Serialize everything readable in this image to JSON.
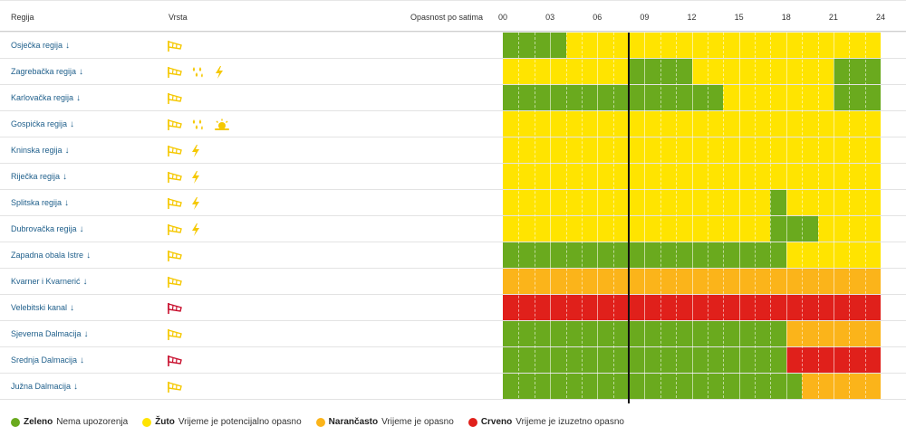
{
  "header": {
    "region_col": "Regija",
    "type_col": "Vrsta",
    "hazard_col": "Opasnost po satima",
    "hours": [
      "00",
      "03",
      "06",
      "09",
      "12",
      "15",
      "18",
      "21",
      "24"
    ]
  },
  "colors": {
    "green": "#6aaa1e",
    "yellow": "#ffe400",
    "orange": "#fbb41a",
    "red": "#e0201b",
    "wind_yellow": "#f5c800",
    "wind_red": "#c8102e",
    "region_link": "#1f5f8b"
  },
  "current_hour": 8,
  "rows": [
    {
      "region": "Osječka regija",
      "icons": [
        "wind-yellow-icon"
      ],
      "segments": [
        {
          "from": 0,
          "to": 4,
          "level": "green"
        },
        {
          "from": 4,
          "to": 24,
          "level": "yellow"
        }
      ]
    },
    {
      "region": "Zagrebačka regija",
      "icons": [
        "wind-yellow-icon",
        "rain-yellow-icon",
        "thunderstorm-yellow-icon"
      ],
      "segments": [
        {
          "from": 0,
          "to": 8,
          "level": "yellow"
        },
        {
          "from": 8,
          "to": 12,
          "level": "green"
        },
        {
          "from": 12,
          "to": 21,
          "level": "yellow"
        },
        {
          "from": 21,
          "to": 24,
          "level": "green"
        }
      ]
    },
    {
      "region": "Karlovačka regija",
      "icons": [
        "wind-yellow-icon"
      ],
      "segments": [
        {
          "from": 0,
          "to": 14,
          "level": "green"
        },
        {
          "from": 14,
          "to": 21,
          "level": "yellow"
        },
        {
          "from": 21,
          "to": 24,
          "level": "green"
        }
      ]
    },
    {
      "region": "Gospićka regija",
      "icons": [
        "wind-yellow-icon",
        "rain-yellow-icon",
        "heat-yellow-icon"
      ],
      "segments": [
        {
          "from": 0,
          "to": 24,
          "level": "yellow"
        }
      ]
    },
    {
      "region": "Kninska regija",
      "icons": [
        "wind-yellow-icon",
        "thunderstorm-yellow-icon"
      ],
      "segments": [
        {
          "from": 0,
          "to": 24,
          "level": "yellow"
        }
      ]
    },
    {
      "region": "Riječka regija",
      "icons": [
        "wind-yellow-icon",
        "thunderstorm-yellow-icon"
      ],
      "segments": [
        {
          "from": 0,
          "to": 24,
          "level": "yellow"
        }
      ]
    },
    {
      "region": "Splitska regija",
      "icons": [
        "wind-yellow-icon",
        "thunderstorm-yellow-icon"
      ],
      "segments": [
        {
          "from": 0,
          "to": 17,
          "level": "yellow"
        },
        {
          "from": 17,
          "to": 18,
          "level": "green"
        },
        {
          "from": 18,
          "to": 24,
          "level": "yellow"
        }
      ]
    },
    {
      "region": "Dubrovačka regija",
      "icons": [
        "wind-yellow-icon",
        "thunderstorm-yellow-icon"
      ],
      "segments": [
        {
          "from": 0,
          "to": 17,
          "level": "yellow"
        },
        {
          "from": 17,
          "to": 20,
          "level": "green"
        },
        {
          "from": 20,
          "to": 24,
          "level": "yellow"
        }
      ]
    },
    {
      "region": "Zapadna obala Istre",
      "icons": [
        "wind-yellow-icon"
      ],
      "segments": [
        {
          "from": 0,
          "to": 18,
          "level": "green"
        },
        {
          "from": 18,
          "to": 24,
          "level": "yellow"
        }
      ]
    },
    {
      "region": "Kvarner i Kvarnerić",
      "icons": [
        "wind-yellow-icon"
      ],
      "segments": [
        {
          "from": 0,
          "to": 24,
          "level": "orange"
        }
      ]
    },
    {
      "region": "Velebitski kanal",
      "icons": [
        "wind-red-icon"
      ],
      "segments": [
        {
          "from": 0,
          "to": 24,
          "level": "red"
        }
      ]
    },
    {
      "region": "Sjeverna Dalmacija",
      "icons": [
        "wind-yellow-icon"
      ],
      "segments": [
        {
          "from": 0,
          "to": 18,
          "level": "green"
        },
        {
          "from": 18,
          "to": 24,
          "level": "orange"
        }
      ]
    },
    {
      "region": "Srednja Dalmacija",
      "icons": [
        "wind-red-icon"
      ],
      "segments": [
        {
          "from": 0,
          "to": 18,
          "level": "green"
        },
        {
          "from": 18,
          "to": 24,
          "level": "red"
        }
      ]
    },
    {
      "region": "Južna Dalmacija",
      "icons": [
        "wind-yellow-icon"
      ],
      "segments": [
        {
          "from": 0,
          "to": 19,
          "level": "green"
        },
        {
          "from": 19,
          "to": 24,
          "level": "orange"
        }
      ]
    }
  ],
  "legend": [
    {
      "level": "green",
      "name": "Zeleno",
      "text": "Nema upozorenja"
    },
    {
      "level": "yellow",
      "name": "Žuto",
      "text": "Vrijeme je potencijalno opasno"
    },
    {
      "level": "orange",
      "name": "Narančasto",
      "text": "Vrijeme je opasno"
    },
    {
      "level": "red",
      "name": "Crveno",
      "text": "Vrijeme je izuzetno opasno"
    }
  ]
}
